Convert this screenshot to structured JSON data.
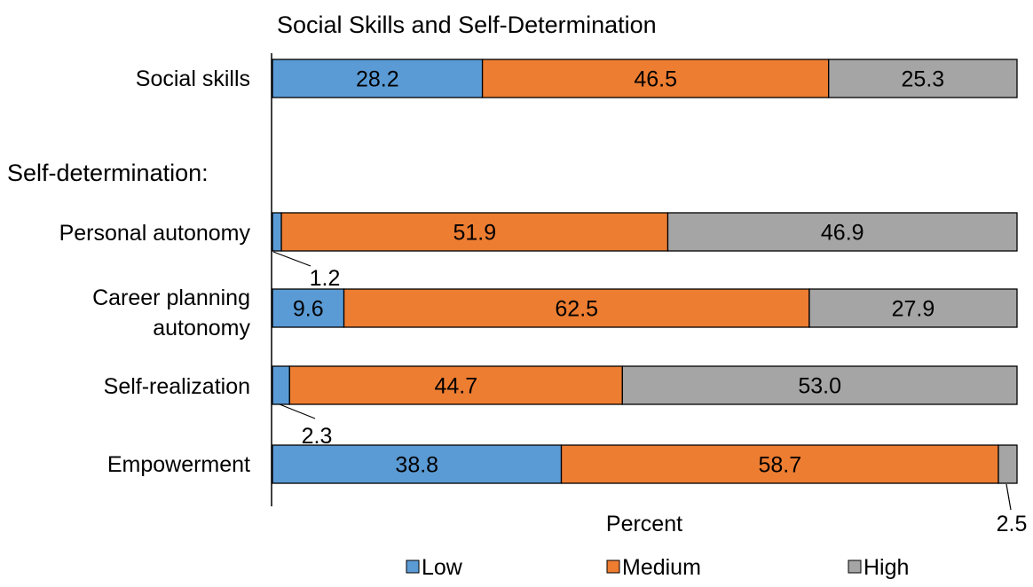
{
  "chart_data": {
    "type": "bar",
    "orientation": "horizontal",
    "stacked": true,
    "title": "Social Skills and Self-Determination",
    "xlabel": "Percent",
    "ylabel": "",
    "xlim": [
      0,
      100
    ],
    "group_label": "Self-determination:",
    "categories": [
      "Social skills",
      "Personal autonomy",
      "Career planning autonomy",
      "Self-realization",
      "Empowerment"
    ],
    "series": [
      {
        "name": "Low",
        "color": "#5b9bd5",
        "values": [
          28.2,
          1.2,
          9.6,
          2.3,
          38.8
        ],
        "labels": [
          "28.2",
          "1.2",
          "9.6",
          "2.3",
          "38.8"
        ]
      },
      {
        "name": "Medium",
        "color": "#ed7d31",
        "values": [
          46.5,
          51.9,
          62.5,
          44.7,
          58.7
        ],
        "labels": [
          "46.5",
          "51.9",
          "62.5",
          "44.7",
          "58.7"
        ]
      },
      {
        "name": "High",
        "color": "#a5a5a5",
        "values": [
          25.3,
          46.9,
          27.9,
          53.0,
          2.5
        ],
        "labels": [
          "25.3",
          "46.9",
          "27.9",
          "53.0",
          "2.5"
        ]
      }
    ],
    "legend_position": "bottom",
    "grid": false
  }
}
